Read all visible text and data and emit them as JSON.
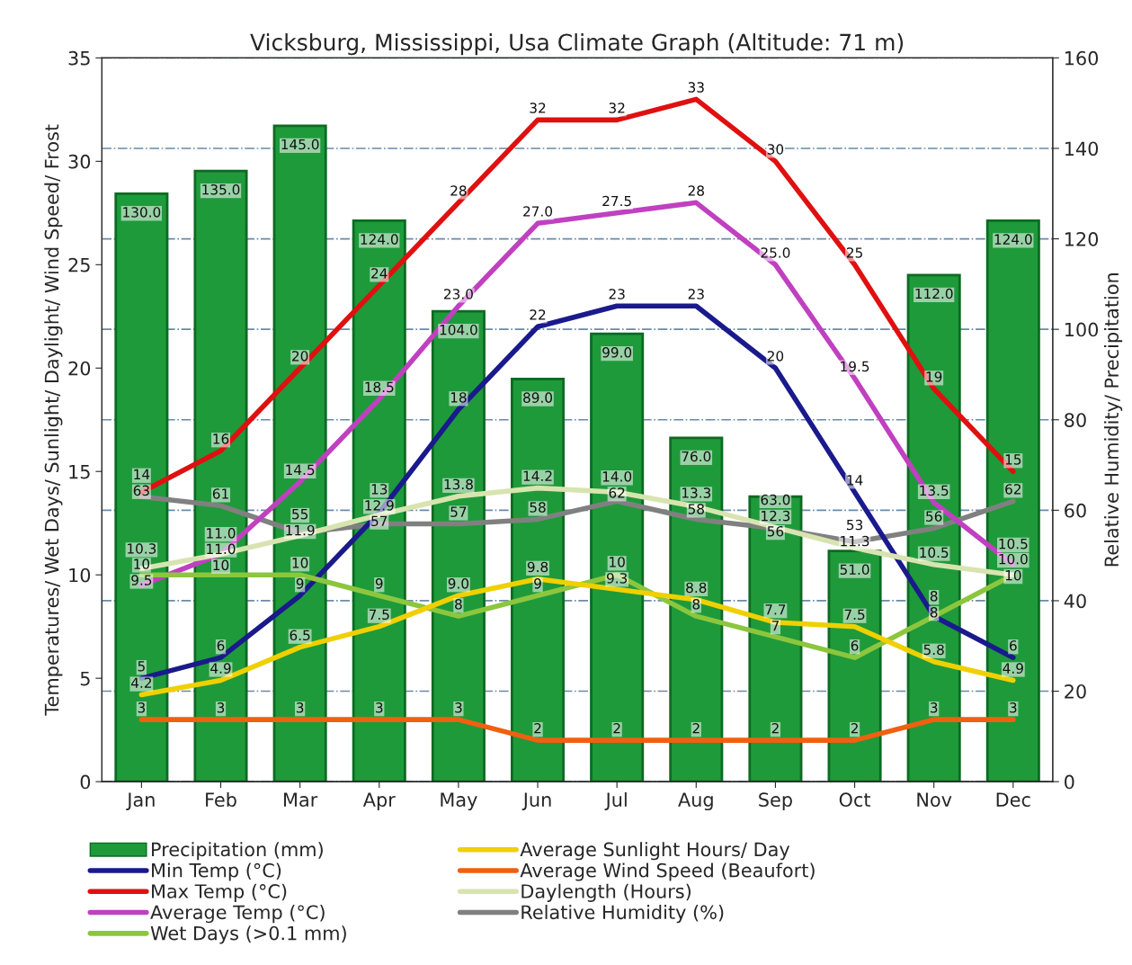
{
  "chart_data": {
    "type": "bar",
    "title": "Vicksburg, Mississippi, Usa Climate Graph (Altitude: 71 m)",
    "ylabel": "Temperatures/ Wet Days/ Sunlight/ Daylight/ Wind Speed/ Frost",
    "y2label": "Relative Humidity/ Precipitation",
    "categories": [
      "Jan",
      "Feb",
      "Mar",
      "Apr",
      "May",
      "Jun",
      "Jul",
      "Aug",
      "Sep",
      "Oct",
      "Nov",
      "Dec"
    ],
    "ylim": [
      0,
      35
    ],
    "yticks": [
      0,
      5,
      10,
      15,
      20,
      25,
      30,
      35
    ],
    "y2lim": [
      0,
      160
    ],
    "y2ticks": [
      0,
      20,
      40,
      60,
      80,
      100,
      120,
      140,
      160
    ],
    "grid": "y",
    "legend": "bottom",
    "line_style": "solid",
    "series": [
      {
        "name": "Precipitation (mm)",
        "type": "bar",
        "axis": "y2",
        "color": "#1e9a3a",
        "values": [
          130.0,
          135.0,
          145.0,
          124.0,
          104.0,
          89.0,
          99.0,
          76.0,
          63.0,
          51.0,
          112.0,
          124.0
        ],
        "value_labels": [
          "130.0",
          "135.0",
          "145.0",
          "124.0",
          "104.0",
          "89.0",
          "99.0",
          "76.0",
          "63.0",
          "51.0",
          "112.0",
          "124.0"
        ]
      },
      {
        "name": "Min Temp (°C)",
        "type": "line",
        "color": "#1a1a8c",
        "values": [
          5,
          6,
          9,
          13,
          18,
          22,
          23,
          23,
          20,
          14,
          8,
          6
        ],
        "value_labels": [
          "5",
          "6",
          "9",
          "13",
          "18",
          "22",
          "23",
          "23",
          "20",
          "14",
          "8",
          "6"
        ]
      },
      {
        "name": "Max Temp (°C)",
        "type": "line",
        "color": "#e01010",
        "values": [
          14,
          16,
          20,
          24,
          28,
          32,
          32,
          33,
          30,
          25,
          19,
          15
        ],
        "value_labels": [
          "14",
          "16",
          "20",
          "24",
          "28",
          "32",
          "32",
          "33",
          "30",
          "25",
          "19",
          "15"
        ]
      },
      {
        "name": "Average Temp (°C)",
        "type": "line",
        "color": "#c040c0",
        "values": [
          9.5,
          11.0,
          14.5,
          18.5,
          23.0,
          27.0,
          27.5,
          28,
          25.0,
          19.5,
          13.5,
          10.5
        ],
        "value_labels": [
          "9.5",
          "11.0",
          "14.5",
          "18.5",
          "23.0",
          "27.0",
          "27.5",
          "28",
          "25.0",
          "19.5",
          "13.5",
          "10.5"
        ]
      },
      {
        "name": "Wet Days (>0.1 mm)",
        "type": "line",
        "color": "#8cc63e",
        "values": [
          10,
          10,
          10,
          9,
          8,
          9,
          10,
          8,
          7,
          6,
          8,
          10
        ],
        "value_labels": [
          "10",
          "10",
          "10",
          "9",
          "8",
          "9",
          "10",
          "8",
          "7",
          "6",
          "8",
          "10"
        ]
      },
      {
        "name": "Average Sunlight Hours/ Day",
        "type": "line",
        "color": "#f0d000",
        "values": [
          4.2,
          4.9,
          6.5,
          7.5,
          9.0,
          9.8,
          9.3,
          8.8,
          7.7,
          7.5,
          5.8,
          4.9
        ],
        "value_labels": [
          "4.2",
          "4.9",
          "6.5",
          "7.5",
          "9.0",
          "9.8",
          "9.3",
          "8.8",
          "7.7",
          "7.5",
          "5.8",
          "4.9"
        ]
      },
      {
        "name": "Average Wind Speed (Beaufort)",
        "type": "line",
        "color": "#f06010",
        "values": [
          3,
          3,
          3,
          3,
          3,
          2,
          2,
          2,
          2,
          2,
          3,
          3
        ],
        "value_labels": [
          "3",
          "3",
          "3",
          "3",
          "3",
          "2",
          "2",
          "2",
          "2",
          "2",
          "3",
          "3"
        ]
      },
      {
        "name": "Daylength (Hours)",
        "type": "line",
        "color": "#d8e4b0",
        "values": [
          10.3,
          11.0,
          11.9,
          12.9,
          13.8,
          14.2,
          14.0,
          13.3,
          12.3,
          11.3,
          10.5,
          10.0
        ],
        "value_labels": [
          "10.3",
          "11.0",
          "11.9",
          "12.9",
          "13.8",
          "14.2",
          "14.0",
          "13.3",
          "12.3",
          "11.3",
          "10.5",
          "10.0"
        ]
      },
      {
        "name": "Relative Humidity (%)",
        "type": "line",
        "axis": "y2",
        "color": "#808080",
        "values": [
          63,
          61,
          55,
          57,
          57,
          58,
          62,
          58,
          56,
          53,
          56,
          62
        ],
        "value_labels": [
          "63",
          "61",
          "55",
          "57",
          "57",
          "58",
          "62",
          "58",
          "56",
          "53",
          "56",
          "62"
        ]
      }
    ]
  }
}
